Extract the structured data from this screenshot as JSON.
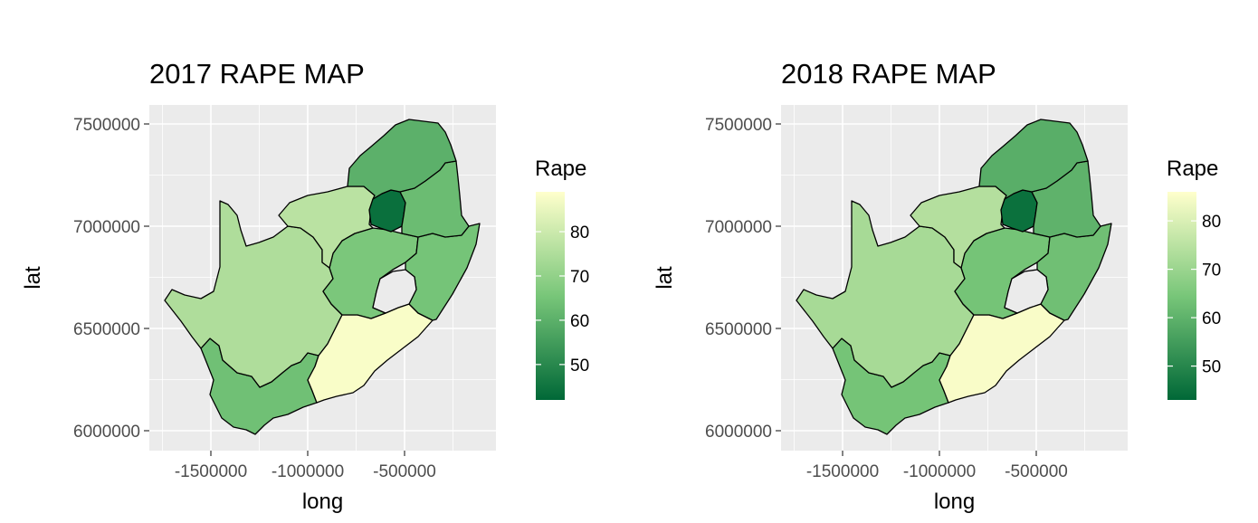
{
  "chart_data": [
    {
      "type": "choropleth",
      "title": "2017 RAPE MAP",
      "xlabel": "long",
      "ylabel": "lat",
      "x_ticks": [
        "-1500000",
        "-1000000",
        "-500000"
      ],
      "y_ticks": [
        "7500000",
        "7000000",
        "6500000",
        "6000000"
      ],
      "legend_title": "Rape",
      "legend_ticks": [
        "80",
        "70",
        "60",
        "50"
      ],
      "value_range": [
        42,
        89
      ],
      "legend_placement": "right",
      "grid": true,
      "color_scale": {
        "low": "#006837",
        "mid": "#78c679",
        "high": "#ffffcc"
      },
      "regions": [
        {
          "name": "Western Cape",
          "value": 64
        },
        {
          "name": "Northern Cape",
          "value": 75
        },
        {
          "name": "Eastern Cape",
          "value": 88
        },
        {
          "name": "Free State",
          "value": 66
        },
        {
          "name": "KwaZulu-Natal",
          "value": 65
        },
        {
          "name": "North West",
          "value": 77
        },
        {
          "name": "Gauteng",
          "value": 44
        },
        {
          "name": "Mpumalanga",
          "value": 63
        },
        {
          "name": "Limpopo",
          "value": 60
        }
      ]
    },
    {
      "type": "choropleth",
      "title": "2018 RAPE MAP",
      "xlabel": "long",
      "ylabel": "lat",
      "x_ticks": [
        "-1500000",
        "-1000000",
        "-500000"
      ],
      "y_ticks": [
        "7500000",
        "7000000",
        "6500000",
        "6000000"
      ],
      "legend_title": "Rape",
      "legend_ticks": [
        "80",
        "70",
        "60",
        "50"
      ],
      "value_range": [
        43,
        86
      ],
      "legend_placement": "right",
      "grid": true,
      "color_scale": {
        "low": "#006837",
        "mid": "#78c679",
        "high": "#ffffcc"
      },
      "regions": [
        {
          "name": "Western Cape",
          "value": 64
        },
        {
          "name": "Northern Cape",
          "value": 72
        },
        {
          "name": "Eastern Cape",
          "value": 85
        },
        {
          "name": "Free State",
          "value": 64
        },
        {
          "name": "KwaZulu-Natal",
          "value": 63
        },
        {
          "name": "North West",
          "value": 74
        },
        {
          "name": "Gauteng",
          "value": 45
        },
        {
          "name": "Mpumalanga",
          "value": 60
        },
        {
          "name": "Limpopo",
          "value": 59
        }
      ]
    }
  ]
}
